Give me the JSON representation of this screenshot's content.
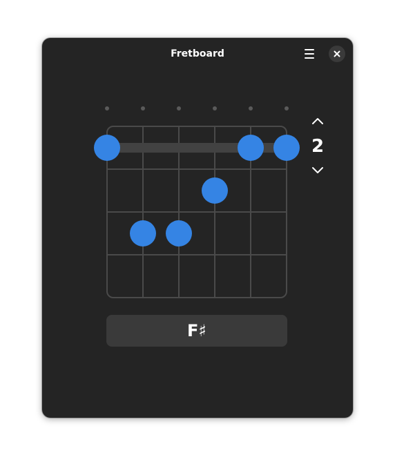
{
  "app": {
    "title": "Fretboard"
  },
  "header": {
    "menu_icon": "hamburger-menu-icon",
    "close_icon": "close-icon"
  },
  "fretboard": {
    "strings": 6,
    "frets_shown": 4,
    "barre": {
      "fret": 1,
      "from_string": 1,
      "to_string": 6
    },
    "fingers": [
      {
        "string": 1,
        "fret": 1
      },
      {
        "string": 5,
        "fret": 1
      },
      {
        "string": 6,
        "fret": 1
      },
      {
        "string": 4,
        "fret": 2
      },
      {
        "string": 2,
        "fret": 3
      },
      {
        "string": 3,
        "fret": 3
      }
    ]
  },
  "fret_spinner": {
    "value": "2",
    "up_icon": "chevron-up-icon",
    "down_icon": "chevron-down-icon"
  },
  "chord": {
    "name": "F♯"
  },
  "colors": {
    "window_bg": "#242424",
    "accent": "#3584e4",
    "grid": "#4a4a4a",
    "button_bg": "#3a3a3a"
  }
}
